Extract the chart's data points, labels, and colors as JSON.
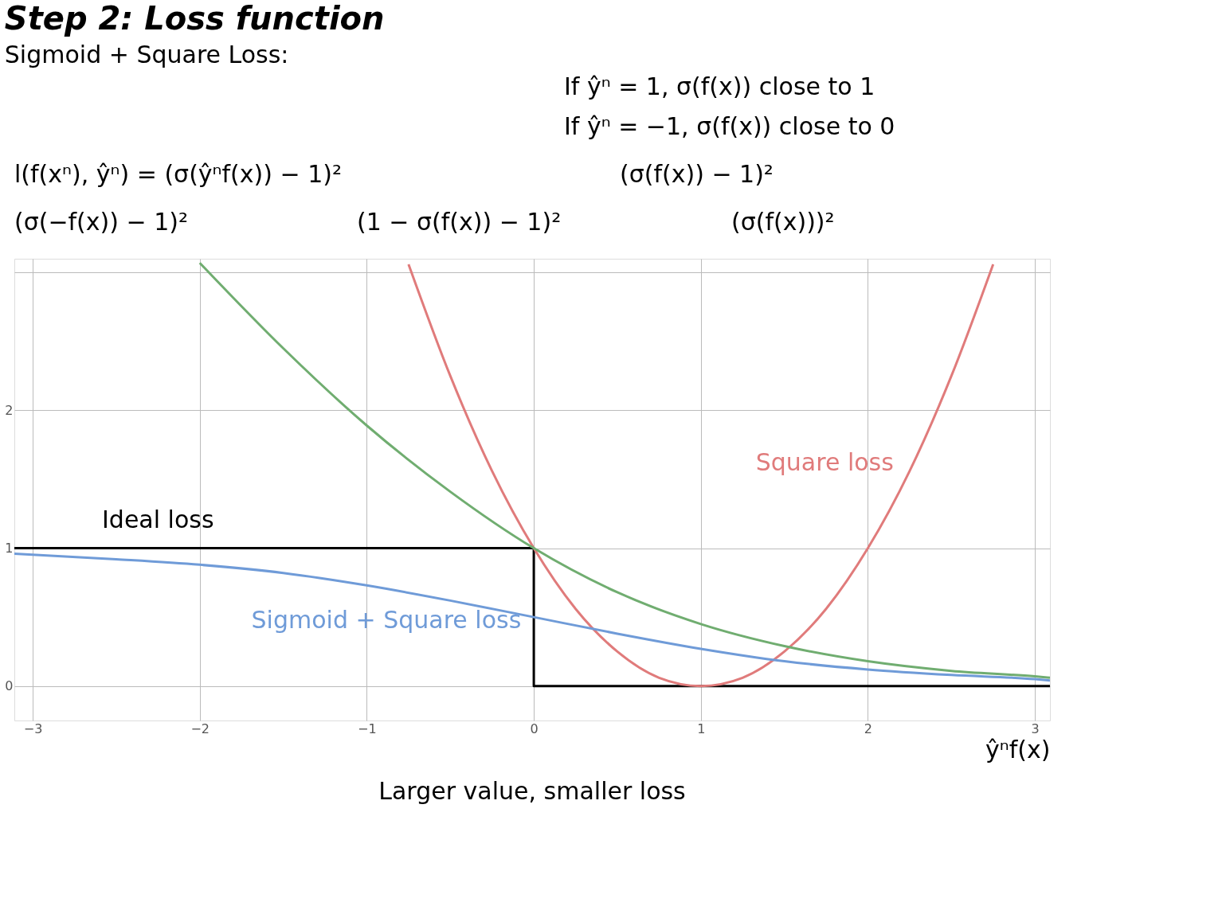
{
  "chart_data": {
    "type": "line",
    "title": "Step 2: Loss function",
    "subtitle": "Sigmoid + Square Loss:",
    "xlabel": "ŷⁿf(x)",
    "annotations": [
      "If ŷⁿ = 1,    σ(f(x)) close to 1",
      "If ŷⁿ = −1,  σ(f(x)) close to 0",
      "l(f(xⁿ), ŷⁿ) = (σ(ŷⁿf(x)) − 1)²",
      "(σ(f(x)) − 1)²",
      "(σ(−f(x)) − 1)²",
      "(1 − σ(f(x)) − 1)²",
      "(σ(f(x)))²",
      "Larger value, smaller loss"
    ],
    "xlim": [
      -3.11,
      3.09
    ],
    "ylim": [
      -0.25,
      3.1
    ],
    "xticks": [
      -3,
      -2,
      -1,
      0,
      1,
      2,
      3
    ],
    "yticks": [
      0,
      1,
      2,
      {
        "value": 3,
        "label": null
      }
    ],
    "grid": true,
    "line_style": "solid",
    "marker": "none",
    "series": [
      {
        "name": "Ideal loss",
        "color": "#000000",
        "x": [
          -3.11,
          0,
          0,
          3.09
        ],
        "values": [
          1,
          1,
          0,
          0
        ]
      },
      {
        "name": "Square loss",
        "color": "#e07b7b",
        "x": [
          -0.75,
          -0.5,
          -0.25,
          0,
          0.25,
          0.5,
          0.75,
          1,
          1.25,
          1.5,
          1.75,
          2,
          2.25,
          2.5,
          2.75
        ],
        "values": [
          3.06,
          2.25,
          1.56,
          1,
          0.56,
          0.25,
          0.06,
          0,
          0.06,
          0.25,
          0.56,
          1,
          1.56,
          2.25,
          3.06
        ]
      },
      {
        "color": "#70ad70",
        "x": [
          -2,
          -1.5,
          -1,
          -0.5,
          0,
          0.5,
          1,
          1.5,
          2,
          2.5,
          3,
          3.09
        ],
        "values": [
          3.07,
          2.45,
          1.89,
          1.41,
          1,
          0.68,
          0.45,
          0.29,
          0.18,
          0.11,
          0.07,
          0.06
        ]
      },
      {
        "name": "Sigmoid + Square loss",
        "color": "#6f9bd8",
        "x": [
          -3.11,
          -2.5,
          -2,
          -1.5,
          -1,
          -0.5,
          0,
          0.5,
          1,
          1.5,
          2,
          2.5,
          3,
          3.09
        ],
        "values": [
          0.96,
          0.92,
          0.88,
          0.82,
          0.73,
          0.62,
          0.5,
          0.38,
          0.27,
          0.18,
          0.12,
          0.08,
          0.05,
          0.04
        ]
      }
    ]
  }
}
